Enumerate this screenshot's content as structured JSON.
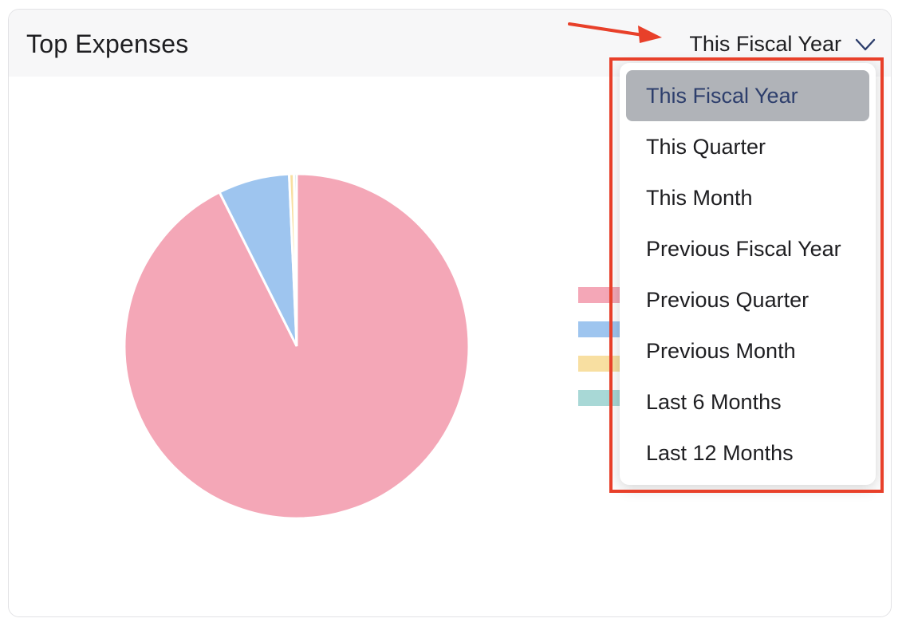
{
  "card": {
    "title": "Top Expenses"
  },
  "period_select": {
    "value": "This Fiscal Year",
    "icon": "chevron-down-icon"
  },
  "dropdown": {
    "options": [
      "This Fiscal Year",
      "This Quarter",
      "This Month",
      "Previous Fiscal Year",
      "Previous Quarter",
      "Previous Month",
      "Last 6 Months",
      "Last 12 Months"
    ],
    "selected_index": 0
  },
  "chart_data": {
    "type": "pie",
    "title": "",
    "slices": [
      {
        "value": 92.6,
        "color": "#f4a7b7"
      },
      {
        "value": 6.7,
        "color": "#9ec5ef"
      },
      {
        "value": 0.45,
        "color": "#f8dfa1"
      },
      {
        "value": 0.25,
        "color": "#a8d8d6"
      }
    ]
  },
  "colors": {
    "annotation": "#e8402a",
    "selected_bg": "#b0b3b8",
    "selected_text": "#2d3e6c"
  }
}
